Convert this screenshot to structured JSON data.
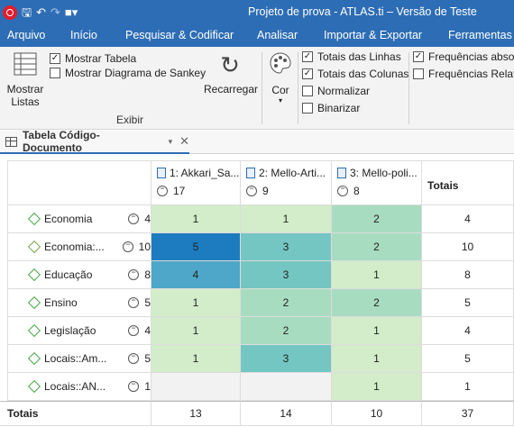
{
  "window": {
    "title": "Projeto de prova - ATLAS.ti – Versão de Teste",
    "qa_icons": [
      "app-logo-icon",
      "save-icon",
      "undo-icon",
      "redo-icon",
      "customize-icon"
    ]
  },
  "menu": {
    "tabs": [
      "Arquivo",
      "Início",
      "Pesquisar & Codificar",
      "Analisar",
      "Importar & Exportar",
      "Ferramentas"
    ]
  },
  "ribbon": {
    "show_lists": "Mostrar\nListas",
    "show_lists_l1": "Mostrar",
    "show_lists_l2": "Listas",
    "show_table": "Mostrar Tabela",
    "show_table_checked": true,
    "show_sankey": "Mostrar Diagrama de Sankey",
    "show_sankey_checked": false,
    "reload": "Recarregar",
    "color": "Cor",
    "group_view": "Exibir",
    "row_totals": "Totais das Linhas",
    "col_totals": "Totais das Colunas",
    "normalize": "Normalizar",
    "binarize": "Binarizar",
    "freq_abs": "Frequências absol",
    "freq_rel": "Frequências Relati"
  },
  "doc_tab": {
    "label": "Tabela Código-Documento"
  },
  "table": {
    "columns": [
      {
        "label": "1: Akkari_Sa...",
        "count": "17"
      },
      {
        "label": "2: Mello-Arti...",
        "count": "9"
      },
      {
        "label": "3: Mello-poli...",
        "count": "8"
      }
    ],
    "totals_header": "Totais",
    "rows": [
      {
        "name": "Economia",
        "count": "4",
        "values": [
          "1",
          "1",
          "2"
        ],
        "total": "4"
      },
      {
        "name": "Economia:...",
        "count": "10",
        "values": [
          "5",
          "3",
          "2"
        ],
        "total": "10"
      },
      {
        "name": "Educação",
        "count": "8",
        "values": [
          "4",
          "3",
          "1"
        ],
        "total": "8"
      },
      {
        "name": "Ensino",
        "count": "5",
        "values": [
          "1",
          "2",
          "2"
        ],
        "total": "5"
      },
      {
        "name": "Legislação",
        "count": "4",
        "values": [
          "1",
          "2",
          "1"
        ],
        "total": "4"
      },
      {
        "name": "Locais::Am...",
        "count": "5",
        "values": [
          "1",
          "3",
          "1"
        ],
        "total": "5"
      },
      {
        "name": "Locais::AN...",
        "count": "1",
        "values": [
          "",
          "",
          "1"
        ],
        "total": "1"
      }
    ],
    "totals_row": {
      "label": "Totais",
      "values": [
        "13",
        "14",
        "10"
      ],
      "total": "37"
    }
  },
  "colors": {
    "titlebar": "#2d6db5",
    "heat_1": "#d3ecc9",
    "heat_2": "#a8dcc0",
    "heat_3": "#74c6c2",
    "heat_4": "#4ea6c8",
    "heat_5": "#1c7cbf",
    "empty": "#f2f2f2"
  }
}
